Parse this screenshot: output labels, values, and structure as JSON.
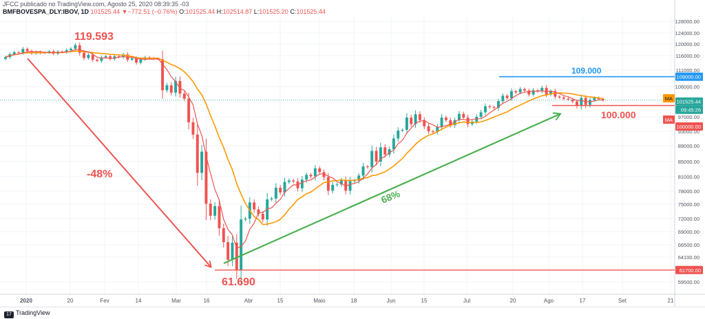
{
  "header": {
    "published": "JFCC publicado no TradingView.com, Agosto 25, 2020 08:39:35 -03",
    "symbol": "BMFBOVESPA_DLY:IBOV, 1D",
    "last": "101525.44",
    "change": "▼−772.51 (−0.76%)",
    "o_label": "O:",
    "o_value": "101525.44",
    "h_label": "H:",
    "h_value": "102514.87",
    "l_label": "L:",
    "l_value": "101525.20",
    "c_label": "C:",
    "c_value": "101525.44"
  },
  "footer": {
    "brand": "TradingView",
    "logo_text": "17"
  },
  "colors": {
    "up": "#26a69a",
    "down": "#ef5350",
    "ma_fast": "#ef5350",
    "ma_slow": "#ff9800",
    "arrow_down": "#ef5350",
    "arrow_up": "#4caf50",
    "level_blue": "#2196f3",
    "level_red": "#ef5350",
    "price_badge": "#26a69a",
    "ma_badge": "#ff9800"
  },
  "chart_data": {
    "type": "candlestick",
    "y_ticks": [
      "128000.00",
      "124000.00",
      "120000.00",
      "116000.00",
      "111000.00",
      "106000.00",
      "101000.00",
      "97000.00",
      "93000.00",
      "89000.00",
      "85000.00",
      "81000.00",
      "78000.00",
      "75000.00",
      "72000.00",
      "69000.00",
      "66500.00",
      "64100.00",
      "59500.00"
    ],
    "x_ticks": [
      "2020",
      "20",
      "Fev",
      "14",
      "Mar",
      "16",
      "Abr",
      "15",
      "Maio",
      "18",
      "Jun",
      "15",
      "Jul",
      "20",
      "Ago",
      "17",
      "Set",
      "21"
    ],
    "ylim": [
      57000,
      130000
    ],
    "badges": {
      "blue_level": "109000.00",
      "last_price": "101525.44",
      "countdown": "09:45:26",
      "red_level": "100000.00",
      "low_level": "61700.00",
      "ma_slow_tag": "MA",
      "ma_fast_tag": "MA"
    },
    "annotations": {
      "high": "119.593",
      "low": "61.690",
      "drop": "-48%",
      "rise": "68%",
      "resistance": "109.000",
      "support": "100.000"
    },
    "levels": {
      "resistance": 109000,
      "support": 100000,
      "low": 61700,
      "last": 101525.44
    },
    "closes": [
      115500,
      116500,
      117200,
      117000,
      118300,
      117600,
      116800,
      117300,
      116900,
      117100,
      117500,
      116700,
      117400,
      117200,
      117900,
      118400,
      119593,
      117000,
      115200,
      116300,
      114600,
      114200,
      115400,
      115800,
      114900,
      115800,
      115500,
      116400,
      114600,
      115100,
      113600,
      114700,
      115400,
      115200,
      114900,
      114800,
      104800,
      106400,
      104000,
      107700,
      103700,
      102000,
      95500,
      92100,
      82000,
      87500,
      75100,
      72600,
      74600,
      69800,
      67000,
      63600,
      66900,
      61690,
      71800,
      72000,
      75400,
      73900,
      73000,
      71800,
      76100,
      76300,
      78700,
      77700,
      79900,
      80200,
      80000,
      78600,
      80400,
      81500,
      81100,
      83200,
      82200,
      80900,
      78100,
      79300,
      79400,
      80200,
      78100,
      80100,
      80200,
      81300,
      83700,
      83500,
      87700,
      85000,
      88600,
      86800,
      88100,
      91000,
      93200,
      93400,
      96800,
      95000,
      97700,
      96100,
      94400,
      93000,
      92800,
      94300,
      96800,
      96100,
      94700,
      96100,
      97800,
      96800,
      95000,
      95700,
      97000,
      98200,
      99800,
      99600,
      99400,
      101200,
      103000,
      102200,
      104500,
      104100,
      105200,
      104700,
      103400,
      104800,
      104400,
      105600,
      103400,
      104500,
      102700,
      102400,
      102000,
      101700,
      101100,
      99900,
      102300,
      100200,
      101600,
      102300,
      101900,
      101525
    ]
  }
}
